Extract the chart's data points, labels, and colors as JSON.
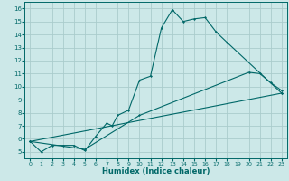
{
  "xlabel": "Humidex (Indice chaleur)",
  "background_color": "#cce8e8",
  "grid_color": "#aacccc",
  "line_color": "#006868",
  "xlim": [
    -0.5,
    23.5
  ],
  "ylim": [
    4.5,
    16.5
  ],
  "xticks": [
    0,
    1,
    2,
    3,
    4,
    5,
    6,
    7,
    8,
    9,
    10,
    11,
    12,
    13,
    14,
    15,
    16,
    17,
    18,
    19,
    20,
    21,
    22,
    23
  ],
  "yticks": [
    5,
    6,
    7,
    8,
    9,
    10,
    11,
    12,
    13,
    14,
    15,
    16
  ],
  "series1": [
    [
      0,
      5.8
    ],
    [
      1,
      5.0
    ],
    [
      2,
      5.5
    ],
    [
      3,
      5.5
    ],
    [
      4,
      5.5
    ],
    [
      5,
      5.1
    ],
    [
      6,
      6.2
    ],
    [
      7,
      7.2
    ],
    [
      7.5,
      7.0
    ],
    [
      8,
      7.8
    ],
    [
      9,
      8.2
    ],
    [
      10,
      10.5
    ],
    [
      11,
      10.8
    ],
    [
      12,
      14.5
    ],
    [
      13,
      15.9
    ],
    [
      14,
      15.0
    ],
    [
      15,
      15.2
    ],
    [
      16,
      15.3
    ],
    [
      17,
      14.2
    ],
    [
      18,
      13.4
    ],
    [
      23,
      9.5
    ]
  ],
  "series2": [
    [
      0,
      5.8
    ],
    [
      5,
      5.2
    ],
    [
      10,
      7.8
    ],
    [
      20,
      11.1
    ],
    [
      21,
      11.0
    ],
    [
      22,
      10.3
    ],
    [
      23,
      9.7
    ]
  ],
  "series3": [
    [
      0,
      5.8
    ],
    [
      23,
      9.5
    ]
  ]
}
